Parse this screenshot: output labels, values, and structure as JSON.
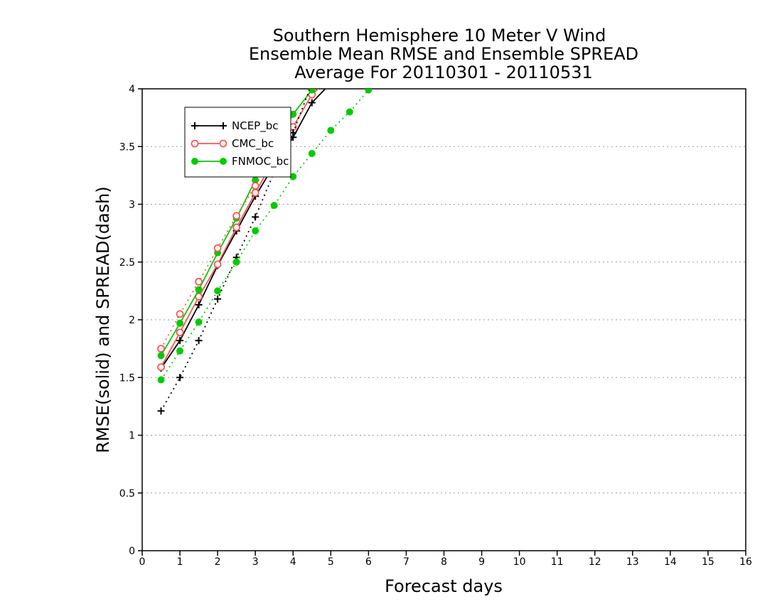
{
  "chart_data": {
    "type": "line",
    "title_lines": [
      "Southern Hemisphere 10 Meter V Wind",
      "Ensemble Mean RMSE and Ensemble SPREAD",
      "Average For 20110301 - 20110531"
    ],
    "xlabel": "Forecast days",
    "ylabel": "RMSE(solid) and SPREAD(dash)",
    "xlim": [
      0,
      16
    ],
    "ylim": [
      0,
      4
    ],
    "x_ticks": [
      "0",
      "1",
      "2",
      "3",
      "4",
      "5",
      "6",
      "7",
      "8",
      "9",
      "10",
      "11",
      "12",
      "13",
      "14",
      "15",
      "16"
    ],
    "y_ticks": [
      "0",
      "0.5",
      "1",
      "1.5",
      "2",
      "2.5",
      "3",
      "3.5",
      "4"
    ],
    "y_grid": true,
    "legend_position": "top-left",
    "series": [
      {
        "name": "NCEP_bc",
        "metric": "RMSE",
        "color": "#000000",
        "marker": "plus",
        "line_style": "solid",
        "x": [
          0.5,
          1,
          1.5,
          2,
          2.5,
          3,
          3.5,
          4,
          4.5,
          5
        ],
        "y": [
          1.58,
          1.82,
          2.13,
          2.47,
          2.77,
          3.07,
          3.34,
          3.58,
          3.88,
          4.05
        ]
      },
      {
        "name": "CMC_bc",
        "metric": "RMSE",
        "color": "#ff5555",
        "marker": "open-circle",
        "line_style": "solid",
        "x": [
          0.5,
          1,
          1.5,
          2,
          2.5,
          3,
          3.5,
          4,
          4.5,
          5
        ],
        "y": [
          1.59,
          1.89,
          2.2,
          2.48,
          2.8,
          3.1,
          3.39,
          3.67,
          3.95,
          4.1
        ]
      },
      {
        "name": "FNMOC_bc",
        "metric": "RMSE",
        "color": "#00cc00",
        "marker": "filled-circle",
        "line_style": "solid",
        "x": [
          0.5,
          1,
          1.5,
          2,
          2.5,
          3,
          3.5,
          4,
          4.5,
          5
        ],
        "y": [
          1.69,
          1.97,
          2.26,
          2.58,
          2.88,
          3.21,
          3.5,
          3.78,
          3.99,
          4.1
        ]
      },
      {
        "name": "NCEP_bc",
        "metric": "SPREAD",
        "color": "#000000",
        "marker": "plus",
        "line_style": "dotted",
        "x": [
          0.5,
          1,
          1.5,
          2,
          2.5,
          3,
          3.5,
          4,
          4.5
        ],
        "y": [
          1.21,
          1.5,
          1.82,
          2.18,
          2.54,
          2.89,
          3.28,
          3.62,
          4.05
        ]
      },
      {
        "name": "CMC_bc",
        "metric": "SPREAD",
        "color": "#ff5555",
        "marker": "open-circle",
        "line_style": "dotted",
        "x": [
          0.5,
          1,
          1.5,
          2,
          2.5,
          3,
          3.5
        ],
        "y": [
          1.75,
          2.05,
          2.33,
          2.62,
          2.9,
          3.16,
          3.45
        ]
      },
      {
        "name": "FNMOC_bc",
        "metric": "SPREAD",
        "color": "#00cc00",
        "marker": "filled-circle",
        "line_style": "dotted",
        "x": [
          0.5,
          1,
          1.5,
          2,
          2.5,
          3,
          3.5,
          4,
          4.5,
          5,
          5.5,
          6
        ],
        "y": [
          1.48,
          1.73,
          1.98,
          2.25,
          2.5,
          2.77,
          2.99,
          3.24,
          3.44,
          3.64,
          3.8,
          3.99
        ]
      }
    ],
    "legend": [
      {
        "label": "NCEP_bc",
        "color": "#000000",
        "marker": "plus"
      },
      {
        "label": "CMC_bc",
        "color": "#ff5555",
        "marker": "open-circle"
      },
      {
        "label": "FNMOC_bc",
        "color": "#00cc00",
        "marker": "filled-circle"
      }
    ]
  }
}
